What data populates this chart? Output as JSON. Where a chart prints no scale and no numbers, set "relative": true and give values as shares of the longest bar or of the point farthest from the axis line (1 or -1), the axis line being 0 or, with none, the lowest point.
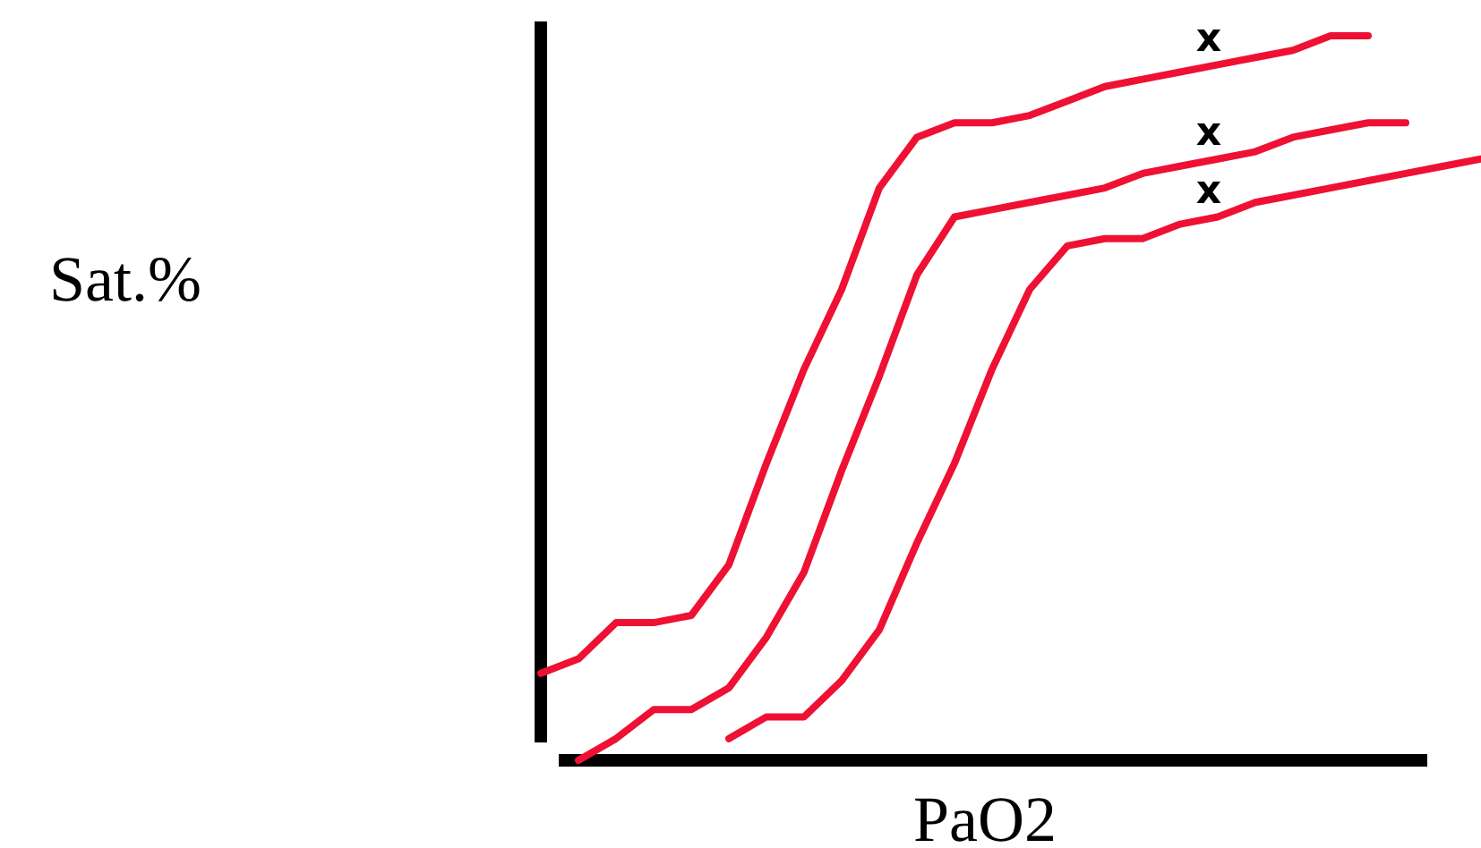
{
  "chart_data": {
    "type": "line",
    "relative": true,
    "xlabel": "PaO2",
    "ylabel": "Sat.%",
    "line_style": "solid",
    "marker": "none",
    "categories": [
      null,
      null,
      null,
      null,
      null,
      null,
      null,
      null,
      null,
      null,
      null,
      null,
      null,
      null,
      null,
      null,
      null,
      null,
      null,
      null,
      null,
      null,
      null,
      null,
      null,
      null
    ],
    "series": [
      {
        "color": "#ee1133",
        "values": [
          0.12,
          0.14,
          0.19,
          0.19,
          0.2,
          0.27,
          0.41,
          0.54,
          0.65,
          0.79,
          0.86,
          0.88,
          0.88,
          0.89,
          0.91,
          0.93,
          0.94,
          0.95,
          0.96,
          0.97,
          0.98,
          1.0,
          1.0,
          null,
          null,
          null
        ]
      },
      {
        "color": "#ee1133",
        "values": [
          null,
          0,
          0.03,
          0.07,
          0.07,
          0.1,
          0.17,
          0.26,
          0.4,
          0.53,
          0.67,
          0.75,
          0.76,
          0.77,
          0.78,
          0.79,
          0.81,
          0.82,
          0.83,
          0.84,
          0.86,
          0.87,
          0.88,
          0.88,
          null,
          null
        ]
      },
      {
        "color": "#ee1133",
        "values": [
          null,
          null,
          null,
          null,
          null,
          0.03,
          0.06,
          0.06,
          0.11,
          0.18,
          0.3,
          0.41,
          0.54,
          0.65,
          0.71,
          0.72,
          0.72,
          0.74,
          0.75,
          0.77,
          0.78,
          0.79,
          0.8,
          0.81,
          0.82,
          0.83
        ]
      }
    ],
    "annotations": [
      "x",
      "x",
      "x"
    ]
  }
}
